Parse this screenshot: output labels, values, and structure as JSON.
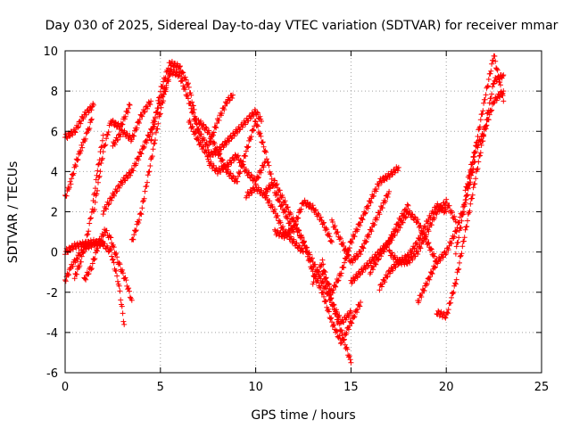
{
  "chart_data": {
    "type": "scatter",
    "title": "Day 030 of 2025, Sidereal Day-to-day VTEC variation (SDTVAR) for receiver mmar",
    "xlabel": "GPS time / hours",
    "ylabel": "SDTVAR / TECUs",
    "xlim": [
      0,
      25
    ],
    "ylim": [
      -6,
      10
    ],
    "xticks": [
      "0",
      "5",
      "10",
      "15",
      "20",
      "25"
    ],
    "yticks": [
      "-6",
      "-4",
      "-2",
      "0",
      "2",
      "4",
      "6",
      "8",
      "10"
    ],
    "grid": true,
    "marker": "+",
    "color": "#ff0000",
    "tracks": [
      {
        "x": [
          0.0,
          0.5,
          1.0,
          1.5
        ],
        "y": [
          5.7,
          6.0,
          6.8,
          7.3
        ]
      },
      {
        "x": [
          0.0,
          0.3,
          0.6,
          0.9,
          1.2,
          1.4
        ],
        "y": [
          2.7,
          3.5,
          4.5,
          5.3,
          6.0,
          6.6
        ]
      },
      {
        "x": [
          0.0,
          0.3,
          0.6,
          1.0,
          1.5,
          2.0
        ],
        "y": [
          -1.4,
          -0.8,
          -0.3,
          0.2,
          0.4,
          0.5
        ]
      },
      {
        "x": [
          0.0,
          0.5,
          1.0,
          1.5,
          2.0,
          2.4,
          2.8,
          3.1
        ],
        "y": [
          0.0,
          0.3,
          0.4,
          0.5,
          0.4,
          0.0,
          -1.5,
          -3.6
        ]
      },
      {
        "x": [
          0.5,
          0.8,
          1.1,
          1.4,
          1.7,
          2.0
        ],
        "y": [
          -1.3,
          -0.5,
          0.5,
          2.0,
          4.0,
          5.8
        ]
      },
      {
        "x": [
          1.0,
          1.4,
          1.8,
          2.1,
          2.4,
          2.8,
          3.2,
          3.5
        ],
        "y": [
          -1.4,
          -0.7,
          0.5,
          1.1,
          0.6,
          -0.5,
          -1.5,
          -2.4
        ]
      },
      {
        "x": [
          1.5,
          2.0,
          2.4,
          2.9,
          3.4
        ],
        "y": [
          2.0,
          5.0,
          6.5,
          6.2,
          7.3
        ]
      },
      {
        "x": [
          2.0,
          2.5,
          3.0,
          3.5,
          4.0,
          4.5,
          5.0,
          5.5
        ],
        "y": [
          2.0,
          2.8,
          3.5,
          4.0,
          5.0,
          6.0,
          7.5,
          8.8
        ]
      },
      {
        "x": [
          2.5,
          3.0,
          3.5,
          4.0,
          4.5
        ],
        "y": [
          5.3,
          6.0,
          5.6,
          6.8,
          7.5
        ]
      },
      {
        "x": [
          3.5,
          4.0,
          4.5,
          5.0,
          5.5
        ],
        "y": [
          0.5,
          2.0,
          4.5,
          7.0,
          9.0
        ]
      },
      {
        "x": [
          4.5,
          5.0,
          5.5,
          6.0,
          6.5,
          7.0
        ],
        "y": [
          5.5,
          8.0,
          9.4,
          9.2,
          8.2,
          6.0
        ]
      },
      {
        "x": [
          5.5,
          6.0,
          6.5,
          7.0,
          7.5,
          8.0,
          8.5,
          8.8
        ],
        "y": [
          9.0,
          8.8,
          7.5,
          6.0,
          5.2,
          6.5,
          7.5,
          7.8
        ]
      },
      {
        "x": [
          6.5,
          7.0,
          7.5,
          8.0,
          8.5,
          9.0,
          9.5,
          10.0,
          10.3
        ],
        "y": [
          6.5,
          5.5,
          4.8,
          5.0,
          5.5,
          6.0,
          6.5,
          7.0,
          6.5
        ]
      },
      {
        "x": [
          7.5,
          8.0,
          8.5,
          9.0,
          9.5,
          10.0,
          10.5
        ],
        "y": [
          4.5,
          4.0,
          4.3,
          4.8,
          4.0,
          3.5,
          4.5
        ]
      },
      {
        "x": [
          7.0,
          7.5,
          8.0,
          8.5,
          9.0,
          9.5,
          10.0,
          10.5,
          11.0,
          11.5,
          12.0
        ],
        "y": [
          6.5,
          6.0,
          5.0,
          4.0,
          3.5,
          5.0,
          6.5,
          5.0,
          3.0,
          2.0,
          1.0
        ]
      },
      {
        "x": [
          9.5,
          10.0,
          10.5,
          11.0,
          11.5,
          12.0,
          12.5
        ],
        "y": [
          2.8,
          3.2,
          2.8,
          2.0,
          1.0,
          0.5,
          0.0
        ]
      },
      {
        "x": [
          10.5,
          11.0,
          11.5,
          12.0,
          12.5,
          13.0,
          13.5,
          14.0,
          14.5,
          15.0
        ],
        "y": [
          3.0,
          3.5,
          2.5,
          1.5,
          0.5,
          -0.5,
          -1.5,
          -2.5,
          -3.5,
          -3.0
        ]
      },
      {
        "x": [
          11.0,
          11.5,
          12.0,
          12.5,
          13.0,
          13.5,
          14.0
        ],
        "y": [
          1.0,
          0.8,
          1.2,
          2.5,
          2.2,
          1.5,
          0.5
        ]
      },
      {
        "x": [
          12.0,
          12.5,
          13.0,
          13.5,
          14.0,
          14.5,
          15.0,
          15.5
        ],
        "y": [
          1.5,
          0.5,
          -1.0,
          -2.0,
          -3.5,
          -4.5,
          -3.5,
          -2.5
        ]
      },
      {
        "x": [
          13.0,
          13.5,
          14.0,
          14.5,
          15.0
        ],
        "y": [
          -1.5,
          -0.5,
          -2.5,
          -4.0,
          -5.5
        ]
      },
      {
        "x": [
          13.5,
          14.0,
          14.5,
          15.0,
          15.5,
          16.0,
          16.5,
          17.0,
          17.5
        ],
        "y": [
          -1.0,
          -2.0,
          -1.0,
          0.5,
          1.5,
          2.5,
          3.5,
          3.8,
          4.2
        ]
      },
      {
        "x": [
          14.0,
          14.5,
          15.0,
          15.5,
          16.0,
          16.5,
          17.0
        ],
        "y": [
          1.5,
          0.5,
          -0.5,
          0.0,
          1.0,
          2.0,
          3.0
        ]
      },
      {
        "x": [
          15.0,
          15.5,
          16.0,
          16.5,
          17.0,
          17.5,
          18.0
        ],
        "y": [
          -1.5,
          -1.0,
          -0.5,
          0.0,
          0.5,
          1.5,
          2.3
        ]
      },
      {
        "x": [
          16.0,
          16.5,
          17.0,
          17.5,
          18.0,
          18.5,
          19.0,
          19.5
        ],
        "y": [
          -1.0,
          -0.2,
          0.5,
          1.2,
          2.0,
          1.5,
          0.5,
          -0.5
        ]
      },
      {
        "x": [
          16.5,
          17.0,
          17.5,
          18.0,
          18.5,
          19.0,
          19.5,
          20.0
        ],
        "y": [
          -1.8,
          -1.0,
          -0.5,
          -0.2,
          0.5,
          1.5,
          2.3,
          2.0
        ]
      },
      {
        "x": [
          17.0,
          17.5,
          18.0,
          18.5,
          19.0,
          19.5,
          20.0,
          20.5
        ],
        "y": [
          0.0,
          -0.5,
          -0.5,
          0.0,
          1.0,
          2.0,
          2.5,
          1.5
        ]
      },
      {
        "x": [
          18.5,
          19.0,
          19.5,
          20.0,
          20.5,
          21.0,
          21.5
        ],
        "y": [
          -2.5,
          -1.5,
          -0.5,
          0.0,
          1.0,
          2.5,
          4.5
        ]
      },
      {
        "x": [
          19.5,
          20.0,
          20.5,
          21.0,
          21.5,
          22.0,
          22.5,
          23.0
        ],
        "y": [
          -3.0,
          -3.2,
          -1.5,
          1.0,
          3.5,
          6.0,
          8.5,
          8.8
        ]
      },
      {
        "x": [
          20.5,
          21.0,
          21.5,
          22.0,
          22.5,
          23.0
        ],
        "y": [
          0.0,
          2.5,
          5.0,
          7.5,
          9.8,
          7.5
        ]
      },
      {
        "x": [
          21.0,
          21.5,
          22.0,
          22.5,
          23.0
        ],
        "y": [
          3.0,
          5.0,
          6.0,
          7.5,
          8.0
        ]
      }
    ]
  }
}
